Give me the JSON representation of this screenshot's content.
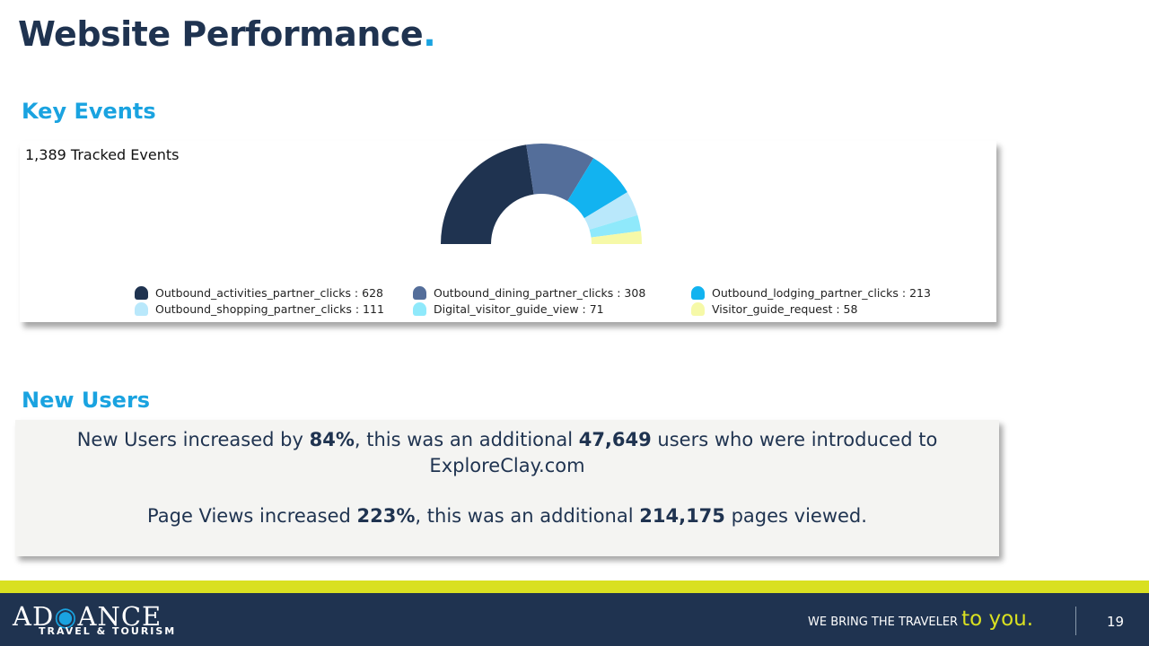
{
  "header": {
    "title": "Website Performance",
    "title_dot": "."
  },
  "key_events": {
    "heading": "Key Events",
    "tracked_label": "1,389 Tracked Events",
    "legend": [
      {
        "label": "Outbound_activities_partner_clicks : 628",
        "color": "#1f3350"
      },
      {
        "label": "Outbound_dining_partner_clicks : 308",
        "color": "#546e9a"
      },
      {
        "label": "Outbound_lodging_partner_clicks : 213",
        "color": "#12b3f0"
      },
      {
        "label": "Outbound_shopping_partner_clicks : 111",
        "color": "#b9e8fb"
      },
      {
        "label": "Digital_visitor_guide_view : 71",
        "color": "#8fe9fb"
      },
      {
        "label": "Visitor_guide_request : 58",
        "color": "#f6f9a8"
      }
    ]
  },
  "chart_data": {
    "type": "pie",
    "style": "half-donut",
    "categories": [
      "Outbound_activities_partner_clicks",
      "Outbound_dining_partner_clicks",
      "Outbound_lodging_partner_clicks",
      "Outbound_shopping_partner_clicks",
      "Digital_visitor_guide_view",
      "Visitor_guide_request"
    ],
    "values": [
      628,
      308,
      213,
      111,
      71,
      58
    ],
    "colors": [
      "#1f3350",
      "#546e9a",
      "#12b3f0",
      "#b9e8fb",
      "#8fe9fb",
      "#f6f9a8"
    ],
    "legend_position": "bottom"
  },
  "new_users": {
    "heading": "New Users",
    "line1_a": "New Users increased by ",
    "line1_pct": "84%",
    "line1_b": ", this was an additional ",
    "line1_num": "47,649",
    "line1_c": " users who were introduced to",
    "line2": "ExploreClay.com",
    "line3_a": "Page Views increased ",
    "line3_pct": "223%",
    "line3_b": ", this was an additional ",
    "line3_num": "214,175",
    "line3_c": " pages viewed."
  },
  "footer": {
    "logo_a": "AD",
    "logo_pin": "◉",
    "logo_b": "ANCE",
    "logo_sub": "TRAVEL & TOURISM",
    "tagline": "WE BRING THE TRAVELER",
    "tagline_accent": "to you.",
    "page_number": "19"
  }
}
